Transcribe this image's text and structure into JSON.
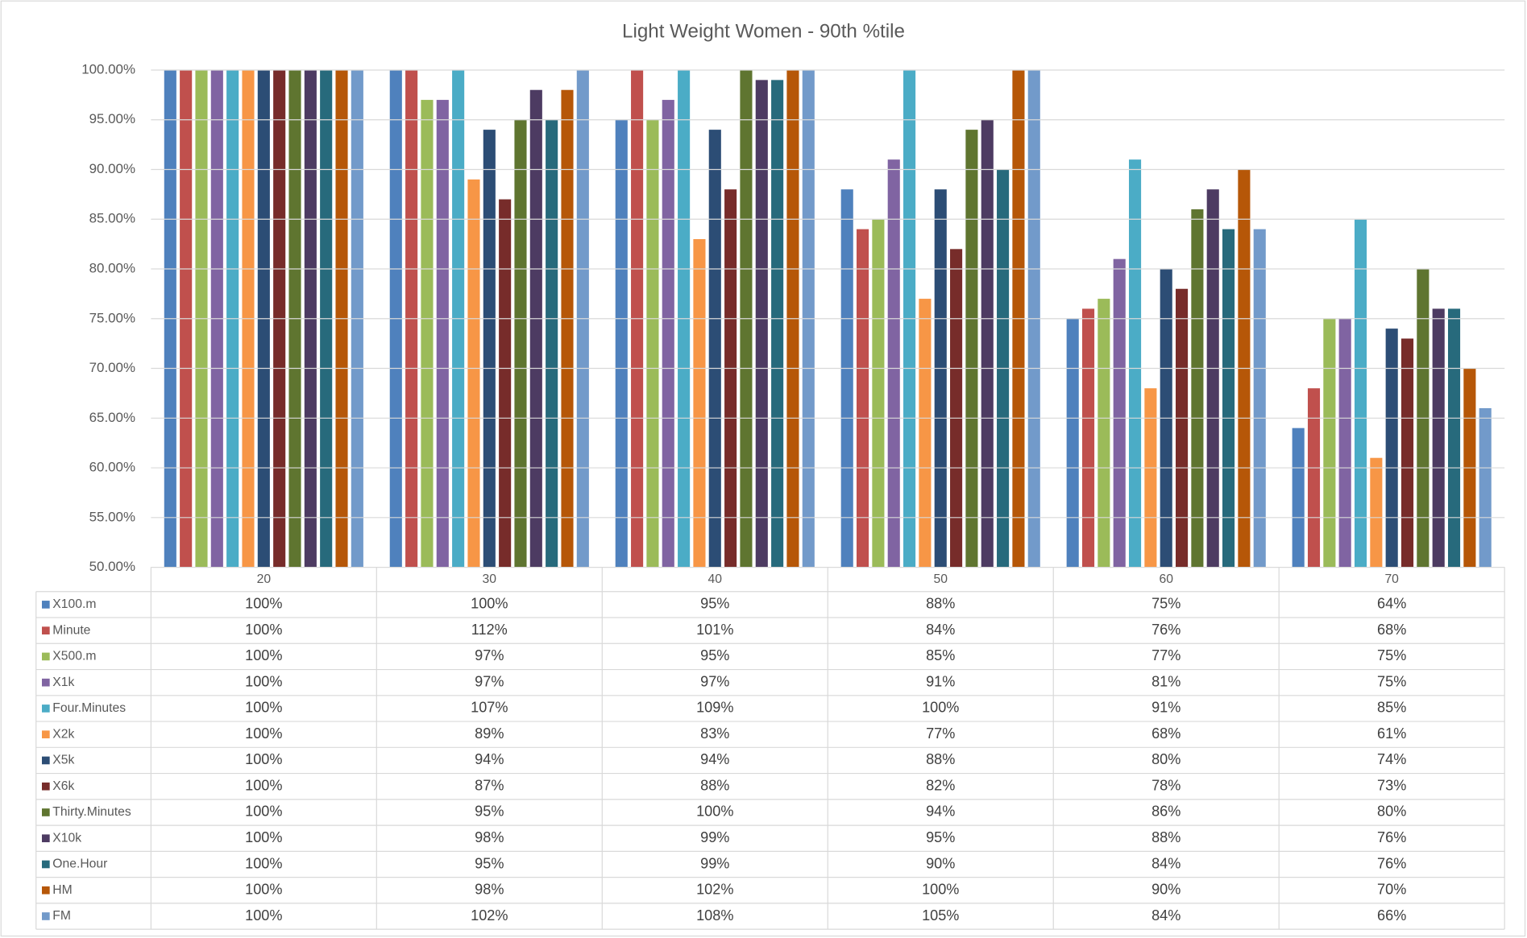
{
  "chart_data": {
    "type": "bar",
    "title": "Light Weight Women - 90th %tile",
    "categories": [
      "20",
      "30",
      "40",
      "50",
      "60",
      "70"
    ],
    "ylim": [
      50,
      100
    ],
    "yticks": [
      {
        "value": 50,
        "label": "50.00%"
      },
      {
        "value": 55,
        "label": "55.00%"
      },
      {
        "value": 60,
        "label": "60.00%"
      },
      {
        "value": 65,
        "label": "65.00%"
      },
      {
        "value": 70,
        "label": "70.00%"
      },
      {
        "value": 75,
        "label": "75.00%"
      },
      {
        "value": 80,
        "label": "80.00%"
      },
      {
        "value": 85,
        "label": "85.00%"
      },
      {
        "value": 90,
        "label": "90.00%"
      },
      {
        "value": 95,
        "label": "95.00%"
      },
      {
        "value": 100,
        "label": "100.00%"
      }
    ],
    "grid": true,
    "series": [
      {
        "name": "X100.m",
        "color": "#4f81bd",
        "values": [
          100,
          100,
          95,
          88,
          75,
          64
        ],
        "value_labels": [
          "100%",
          "100%",
          "95%",
          "88%",
          "75%",
          "64%"
        ]
      },
      {
        "name": "Minute",
        "color": "#c0504d",
        "values": [
          100,
          112,
          101,
          84,
          76,
          68
        ],
        "value_labels": [
          "100%",
          "112%",
          "101%",
          "84%",
          "76%",
          "68%"
        ]
      },
      {
        "name": "X500.m",
        "color": "#9bbb59",
        "values": [
          100,
          97,
          95,
          85,
          77,
          75
        ],
        "value_labels": [
          "100%",
          "97%",
          "95%",
          "85%",
          "77%",
          "75%"
        ]
      },
      {
        "name": "X1k",
        "color": "#8064a2",
        "values": [
          100,
          97,
          97,
          91,
          81,
          75
        ],
        "value_labels": [
          "100%",
          "97%",
          "97%",
          "91%",
          "81%",
          "75%"
        ]
      },
      {
        "name": "Four.Minutes",
        "color": "#4bacc6",
        "values": [
          100,
          107,
          109,
          100,
          91,
          85
        ],
        "value_labels": [
          "100%",
          "107%",
          "109%",
          "100%",
          "91%",
          "85%"
        ]
      },
      {
        "name": "X2k",
        "color": "#f79646",
        "values": [
          100,
          89,
          83,
          77,
          68,
          61
        ],
        "value_labels": [
          "100%",
          "89%",
          "83%",
          "77%",
          "68%",
          "61%"
        ]
      },
      {
        "name": "X5k",
        "color": "#2c4d75",
        "values": [
          100,
          94,
          94,
          88,
          80,
          74
        ],
        "value_labels": [
          "100%",
          "94%",
          "94%",
          "88%",
          "80%",
          "74%"
        ]
      },
      {
        "name": "X6k",
        "color": "#772c2a",
        "values": [
          100,
          87,
          88,
          82,
          78,
          73
        ],
        "value_labels": [
          "100%",
          "87%",
          "88%",
          "82%",
          "78%",
          "73%"
        ]
      },
      {
        "name": "Thirty.Minutes",
        "color": "#5f7530",
        "values": [
          100,
          95,
          100,
          94,
          86,
          80
        ],
        "value_labels": [
          "100%",
          "95%",
          "100%",
          "94%",
          "86%",
          "80%"
        ]
      },
      {
        "name": "X10k",
        "color": "#4d3b62",
        "values": [
          100,
          98,
          99,
          95,
          88,
          76
        ],
        "value_labels": [
          "100%",
          "98%",
          "99%",
          "95%",
          "88%",
          "76%"
        ]
      },
      {
        "name": "One.Hour",
        "color": "#276a7c",
        "values": [
          100,
          95,
          99,
          90,
          84,
          76
        ],
        "value_labels": [
          "100%",
          "95%",
          "99%",
          "90%",
          "84%",
          "76%"
        ]
      },
      {
        "name": "HM",
        "color": "#b65708",
        "values": [
          100,
          98,
          102,
          100,
          90,
          70
        ],
        "value_labels": [
          "100%",
          "98%",
          "102%",
          "100%",
          "90%",
          "70%"
        ]
      },
      {
        "name": "FM",
        "color": "#729aca",
        "values": [
          100,
          102,
          108,
          105,
          84,
          66
        ],
        "value_labels": [
          "100%",
          "102%",
          "108%",
          "105%",
          "84%",
          "66%"
        ]
      }
    ]
  }
}
